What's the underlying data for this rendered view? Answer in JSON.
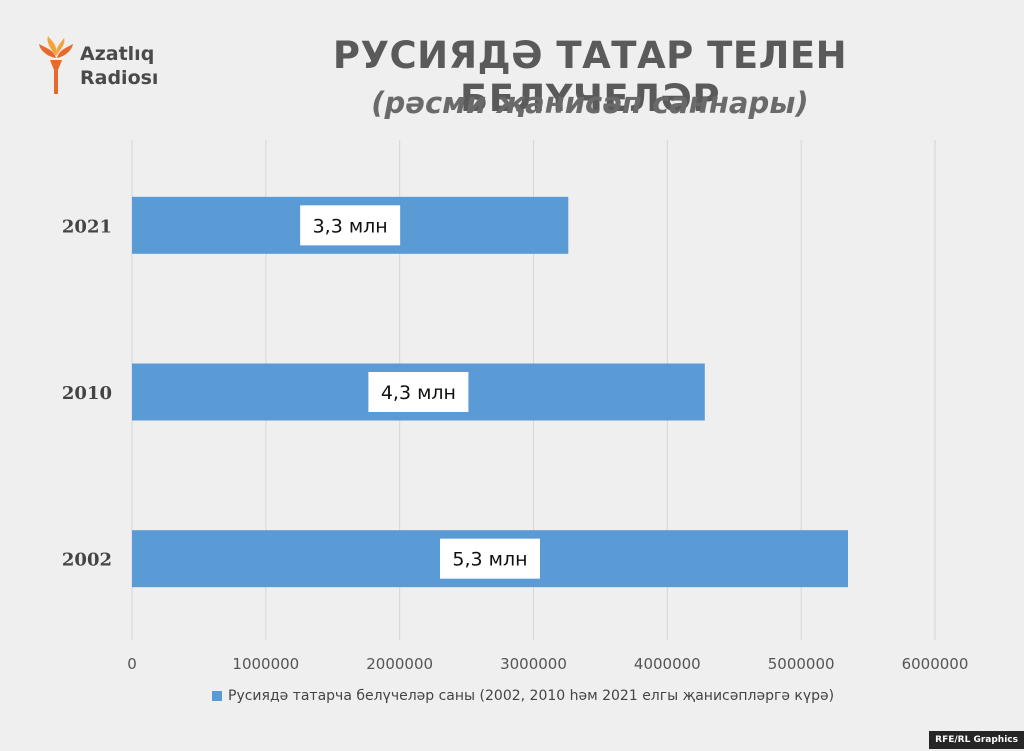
{
  "brand": {
    "line1": "Azatlıq",
    "line2": "Radiosı",
    "flame_colors": [
      "#f5a23a",
      "#e8692c"
    ]
  },
  "header": {
    "title": "РУСИЯДӘ ТАТАР ТЕЛЕН БЕЛҮЧЕЛӘР",
    "subtitle": "(рәсми җанисәп саннары)"
  },
  "chart_data": {
    "type": "bar",
    "orientation": "horizontal",
    "categories": [
      "2002",
      "2010",
      "2021"
    ],
    "series": [
      {
        "name": "Русиядә татарча белүчеләр саны (2002, 2010 һәм 2021 елгы җанисәпләргә күрә)",
        "values": [
          5350000,
          4280000,
          3260000
        ],
        "data_labels": [
          "5,3 млн",
          "4,3 млн",
          "3,3 млн"
        ],
        "color": "#5b9bd5"
      }
    ],
    "xlim": [
      0,
      6000000
    ],
    "xticks": [
      "0",
      "1000000",
      "2000000",
      "3000000",
      "4000000",
      "5000000",
      "6000000"
    ],
    "grid": true,
    "legend_position": "bottom"
  },
  "footer": {
    "credit": "RFE/RL Graphics"
  }
}
